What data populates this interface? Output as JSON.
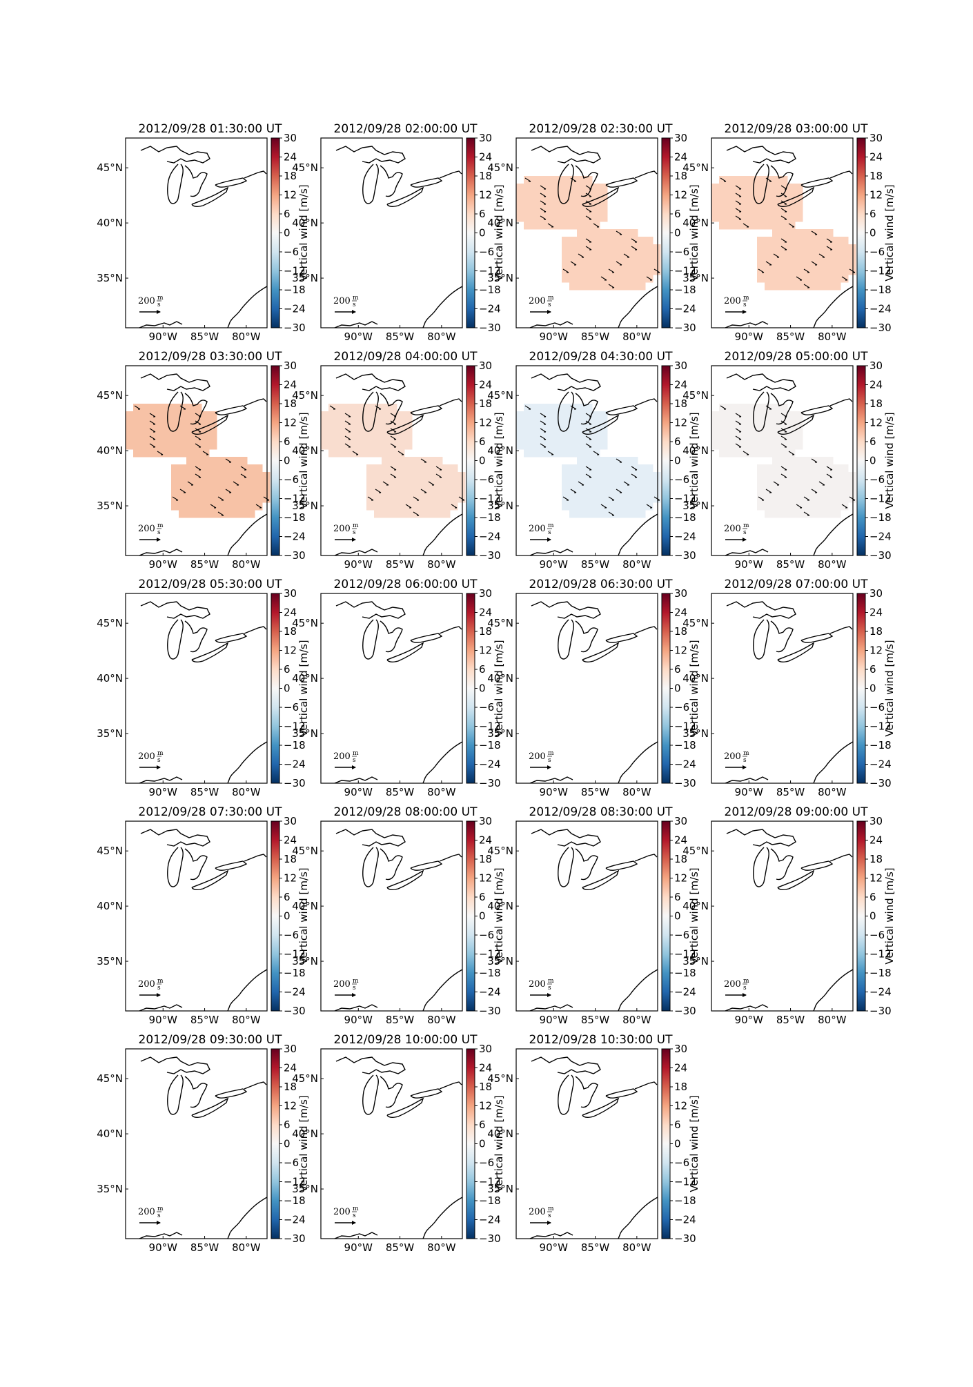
{
  "figure": {
    "colorbar": {
      "label": "Vertical wind [m/s]",
      "ticks": [
        30,
        24,
        18,
        12,
        6,
        0,
        -6,
        -12,
        -18,
        -24,
        -30
      ],
      "tick_labels": [
        "30",
        "24",
        "18",
        "12",
        "6",
        "0",
        "−6",
        "−12",
        "−18",
        "−24",
        "−30"
      ],
      "range": [
        -30,
        30
      ],
      "colormap": [
        "#67001f",
        "#b2182b",
        "#d6604d",
        "#f4a582",
        "#fddbc7",
        "#f7f7f7",
        "#d1e5f0",
        "#92c5de",
        "#4393c3",
        "#2166ac",
        "#053061"
      ]
    },
    "axes": {
      "lon_ticks": [
        "90°W",
        "85°W",
        "80°W"
      ],
      "lat_ticks": [
        "45°N",
        "40°N",
        "35°N"
      ],
      "lon_values": [
        -90,
        -85,
        -80
      ],
      "lat_values": [
        45,
        40,
        35
      ]
    },
    "scale_arrow": {
      "value": "200",
      "unit_num": "m",
      "unit_den": "s"
    },
    "basemap": "Great Lakes region, eastern United States",
    "patch_colors": {
      "p1": "#fbd2bd",
      "p2": "#f7c2a6",
      "p3": "#f9ddcf",
      "p4": "#e4eef6",
      "p5": "#f4f1f0"
    },
    "panels": [
      {
        "title": "2012/09/28 01:30:00 UT",
        "vertical_wind": null
      },
      {
        "title": "2012/09/28 02:00:00 UT",
        "vertical_wind": null
      },
      {
        "title": "2012/09/28 02:30:00 UT",
        "vertical_wind": 6,
        "patch": "p1"
      },
      {
        "title": "2012/09/28 03:00:00 UT",
        "vertical_wind": 6,
        "patch": "p1"
      },
      {
        "title": "2012/09/28 03:30:00 UT",
        "vertical_wind": 8,
        "patch": "p2"
      },
      {
        "title": "2012/09/28 04:00:00 UT",
        "vertical_wind": 4,
        "patch": "p3"
      },
      {
        "title": "2012/09/28 04:30:00 UT",
        "vertical_wind": -2,
        "patch": "p4"
      },
      {
        "title": "2012/09/28 05:00:00 UT",
        "vertical_wind": 1,
        "patch": "p5"
      },
      {
        "title": "2012/09/28 05:30:00 UT",
        "vertical_wind": null
      },
      {
        "title": "2012/09/28 06:00:00 UT",
        "vertical_wind": null
      },
      {
        "title": "2012/09/28 06:30:00 UT",
        "vertical_wind": null
      },
      {
        "title": "2012/09/28 07:00:00 UT",
        "vertical_wind": null
      },
      {
        "title": "2012/09/28 07:30:00 UT",
        "vertical_wind": null
      },
      {
        "title": "2012/09/28 08:00:00 UT",
        "vertical_wind": null
      },
      {
        "title": "2012/09/28 08:30:00 UT",
        "vertical_wind": null
      },
      {
        "title": "2012/09/28 09:00:00 UT",
        "vertical_wind": null
      },
      {
        "title": "2012/09/28 09:30:00 UT",
        "vertical_wind": null
      },
      {
        "title": "2012/09/28 10:00:00 UT",
        "vertical_wind": null
      },
      {
        "title": "2012/09/28 10:30:00 UT",
        "vertical_wind": null
      }
    ]
  }
}
